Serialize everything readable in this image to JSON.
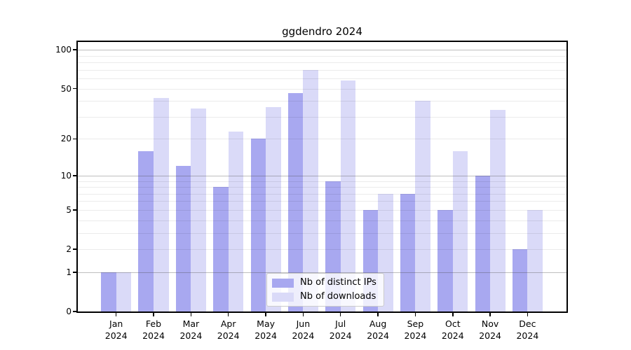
{
  "chart_data": {
    "type": "bar",
    "title": "ggdendro 2024",
    "categories": [
      "Jan",
      "Feb",
      "Mar",
      "Apr",
      "May",
      "Jun",
      "Jul",
      "Aug",
      "Sep",
      "Oct",
      "Nov",
      "Dec"
    ],
    "year": "2024",
    "series": [
      {
        "name": "Nb of distinct IPs",
        "color": "#a8a8f0",
        "values": [
          1,
          16,
          12,
          8,
          20,
          46,
          9,
          5,
          7,
          5,
          10,
          2
        ]
      },
      {
        "name": "Nb of downloads",
        "color": "#dadaf8",
        "values": [
          1,
          42,
          35,
          23,
          36,
          70,
          58,
          7,
          40,
          16,
          34,
          5
        ]
      }
    ],
    "yscale": "log1p",
    "ylim": [
      0,
      115
    ],
    "yticks": [
      100,
      50,
      20,
      10,
      5,
      2,
      1,
      0
    ],
    "major_gridlines": [
      1,
      10,
      100
    ],
    "minor_gridlines": [
      2,
      3,
      4,
      5,
      6,
      7,
      8,
      9,
      20,
      30,
      40,
      50,
      60,
      70,
      80,
      90
    ],
    "grid": "on",
    "legend_position": "lower center"
  },
  "colors": {
    "major_grid": "rgba(70,70,70,0.35)",
    "minor_grid": "rgba(0,0,0,0.08)",
    "spine": "#000000",
    "background": "#ffffff"
  }
}
